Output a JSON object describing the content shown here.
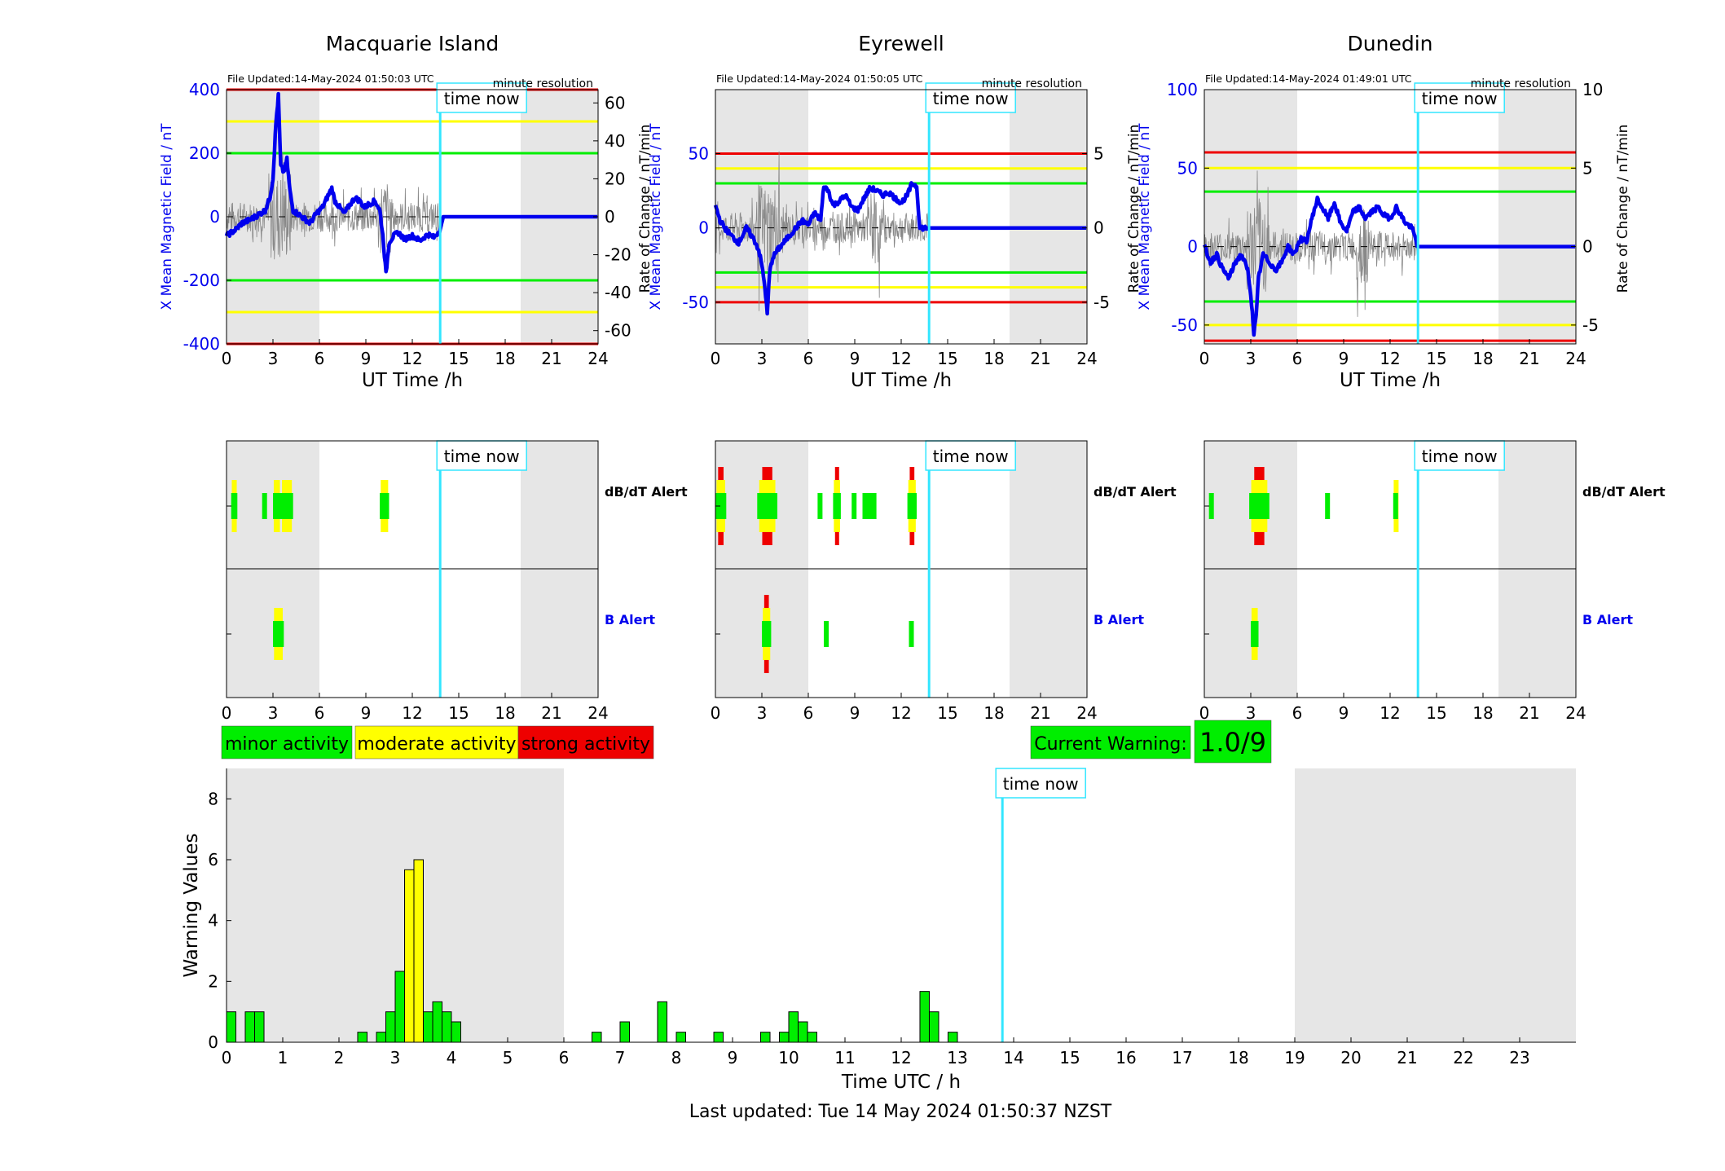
{
  "colors": {
    "blue": "#0000ee",
    "cyan": "#33e6ff",
    "green": "#00ee00",
    "yellow": "#ffff00",
    "red": "#ee0000",
    "night": "#e6e6e6",
    "grey_line": "#888888"
  },
  "legend": {
    "minor": "minor activity",
    "moderate": "moderate activity",
    "strong": "strong activity"
  },
  "current_warning": {
    "label": "Current Warning:",
    "value": "1.0/9"
  },
  "time_now_label": "time now",
  "alert_labels": {
    "dbdt": "dB/dT Alert",
    "b": "B Alert"
  },
  "chart_data": [
    {
      "type": "line",
      "title": "Macquarie Island",
      "file_updated": "File Updated:14-May-2024 01:50:03 UTC",
      "resolution": "minute resolution",
      "xlabel": "UT Time /h",
      "ylabel_left": "X Mean Magnetic Field / nT",
      "ylabel_right": "Rate of Change / nT/min",
      "xlim": [
        0,
        24
      ],
      "xticks": [
        0,
        3,
        6,
        9,
        12,
        15,
        18,
        21,
        24
      ],
      "ylim": [
        -400,
        400
      ],
      "yticks": [
        -400,
        -200,
        0,
        200,
        400
      ],
      "ylim_right": [
        -67,
        67
      ],
      "yticks_right": [
        -60,
        -40,
        -20,
        0,
        20,
        40,
        60
      ],
      "night": [
        [
          0,
          6
        ],
        [
          19,
          24
        ]
      ],
      "time_now": 13.8,
      "thresholds": [
        {
          "value": 200,
          "color": "green"
        },
        {
          "value": -200,
          "color": "green"
        },
        {
          "value": 300,
          "color": "yellow"
        },
        {
          "value": -300,
          "color": "yellow"
        },
        {
          "value": 400,
          "color": "red"
        },
        {
          "value": -400,
          "color": "red"
        }
      ],
      "series": [
        {
          "x": [
            0,
            0.3,
            0.6,
            1.0,
            1.5,
            2.0,
            2.5,
            2.8,
            3.0,
            3.2,
            3.35,
            3.5,
            3.7,
            3.9,
            4.1,
            4.3,
            4.6,
            5.0,
            5.4,
            5.8,
            6.2,
            6.5,
            6.8,
            7.0,
            7.3,
            7.6,
            8.0,
            8.3,
            8.6,
            8.9,
            9.2,
            9.6,
            9.9,
            10.1,
            10.3,
            10.5,
            10.8,
            11.1,
            11.5,
            12.0,
            12.5,
            13.0,
            13.4,
            13.8,
            14.0,
            24
          ],
          "values": [
            -60,
            -50,
            -40,
            -20,
            -10,
            5,
            20,
            60,
            120,
            300,
            380,
            160,
            140,
            180,
            80,
            20,
            10,
            -5,
            -20,
            10,
            30,
            60,
            90,
            50,
            30,
            10,
            40,
            60,
            50,
            30,
            40,
            50,
            20,
            -60,
            -180,
            -80,
            -60,
            -50,
            -70,
            -60,
            -75,
            -55,
            -65,
            -40,
            0,
            0
          ]
        }
      ],
      "dbdt_alerts": [
        {
          "x": [
            0.3,
            0.7
          ],
          "level": "yellow"
        },
        {
          "x": [
            2.3,
            2.6
          ],
          "level": "green"
        },
        {
          "x": [
            3.0,
            3.5
          ],
          "level": "yellow"
        },
        {
          "x": [
            3.5,
            4.3
          ],
          "level": "yellow"
        },
        {
          "x": [
            9.9,
            10.5
          ],
          "level": "yellow"
        }
      ],
      "b_alerts": [
        {
          "x": [
            3.0,
            3.7
          ],
          "level": "yellow"
        }
      ]
    },
    {
      "type": "line",
      "title": "Eyrewell",
      "file_updated": "File Updated:14-May-2024 01:50:05 UTC",
      "resolution": "minute resolution",
      "xlabel": "UT Time /h",
      "ylabel_left": "X Mean Magnetic Field / nT",
      "ylabel_right": "Rate of Change / nT/min",
      "xlim": [
        0,
        24
      ],
      "xticks": [
        0,
        3,
        6,
        9,
        12,
        15,
        18,
        21,
        24
      ],
      "ylim": [
        -78,
        93
      ],
      "yticks": [
        -50,
        0,
        50
      ],
      "ylim_right": [
        -7.8,
        9.3
      ],
      "yticks_right": [
        -5,
        0,
        5
      ],
      "night": [
        [
          0,
          6
        ],
        [
          19,
          24
        ]
      ],
      "time_now": 13.8,
      "thresholds": [
        {
          "value": 30,
          "color": "green"
        },
        {
          "value": -30,
          "color": "green"
        },
        {
          "value": 40,
          "color": "yellow"
        },
        {
          "value": -40,
          "color": "yellow"
        },
        {
          "value": 50,
          "color": "red"
        },
        {
          "value": -50,
          "color": "red"
        }
      ],
      "series": [
        {
          "x": [
            0,
            0.3,
            0.6,
            1.0,
            1.5,
            2.0,
            2.5,
            2.8,
            3.0,
            3.2,
            3.35,
            3.5,
            3.7,
            4.0,
            4.4,
            4.8,
            5.2,
            5.6,
            6.0,
            6.4,
            6.8,
            7.0,
            7.3,
            7.6,
            8.0,
            8.4,
            8.8,
            9.2,
            9.6,
            10.0,
            10.4,
            10.8,
            11.2,
            11.6,
            12.0,
            12.4,
            12.7,
            13.0,
            13.2,
            24
          ],
          "values": [
            15,
            5,
            0,
            -5,
            -10,
            0,
            -8,
            -15,
            -25,
            -40,
            -58,
            -30,
            -20,
            -15,
            -10,
            -5,
            0,
            5,
            2,
            10,
            5,
            28,
            25,
            15,
            18,
            22,
            14,
            12,
            20,
            27,
            25,
            22,
            24,
            20,
            17,
            22,
            30,
            28,
            0,
            0
          ]
        }
      ],
      "dbdt_alerts": [
        {
          "x": [
            0,
            0.7
          ],
          "level": "red"
        },
        {
          "x": [
            2.7,
            4.0
          ],
          "level": "red"
        },
        {
          "x": [
            6.6,
            6.9
          ],
          "level": "green"
        },
        {
          "x": [
            7.6,
            8.1
          ],
          "level": "red"
        },
        {
          "x": [
            8.8,
            9.1
          ],
          "level": "green"
        },
        {
          "x": [
            9.5,
            10.4
          ],
          "level": "green"
        },
        {
          "x": [
            12.4,
            13.0
          ],
          "level": "red"
        }
      ],
      "b_alerts": [
        {
          "x": [
            3.0,
            3.6
          ],
          "level": "red"
        },
        {
          "x": [
            7.0,
            7.3
          ],
          "level": "green"
        },
        {
          "x": [
            12.5,
            12.8
          ],
          "level": "green"
        }
      ]
    },
    {
      "type": "line",
      "title": "Dunedin",
      "file_updated": "File Updated:14-May-2024 01:49:01 UTC",
      "resolution": "minute resolution",
      "xlabel": "UT Time /h",
      "ylabel_left": "X Mean Magnetic Field / nT",
      "ylabel_right": "Rate of Change / nT/min",
      "xlim": [
        0,
        24
      ],
      "xticks": [
        0,
        3,
        6,
        9,
        12,
        15,
        18,
        21,
        24
      ],
      "ylim": [
        -62,
        100
      ],
      "yticks": [
        -50,
        0,
        50,
        100
      ],
      "ylim_right": [
        -6.2,
        10
      ],
      "yticks_right": [
        -5,
        0,
        5,
        10
      ],
      "night": [
        [
          0,
          6
        ],
        [
          19,
          24
        ]
      ],
      "time_now": 13.8,
      "thresholds": [
        {
          "value": 35,
          "color": "green"
        },
        {
          "value": -35,
          "color": "green"
        },
        {
          "value": 50,
          "color": "yellow"
        },
        {
          "value": -50,
          "color": "yellow"
        },
        {
          "value": 60,
          "color": "red"
        },
        {
          "value": -60,
          "color": "red"
        }
      ],
      "series": [
        {
          "x": [
            0,
            0.4,
            0.8,
            1.2,
            1.6,
            2.0,
            2.4,
            2.8,
            3.0,
            3.2,
            3.35,
            3.5,
            3.8,
            4.2,
            4.6,
            5.0,
            5.4,
            5.8,
            6.2,
            6.6,
            7.0,
            7.3,
            7.6,
            8.0,
            8.4,
            8.8,
            9.2,
            9.6,
            10.0,
            10.4,
            10.8,
            11.2,
            11.6,
            12.0,
            12.4,
            12.7,
            13.0,
            13.4,
            13.8,
            24
          ],
          "values": [
            0,
            -10,
            -5,
            -15,
            -20,
            -10,
            -5,
            -15,
            -30,
            -55,
            -45,
            -20,
            -5,
            -10,
            -15,
            -10,
            0,
            -5,
            5,
            3,
            20,
            30,
            25,
            18,
            28,
            15,
            10,
            22,
            25,
            18,
            22,
            25,
            20,
            18,
            25,
            20,
            15,
            12,
            0,
            0
          ]
        }
      ],
      "dbdt_alerts": [
        {
          "x": [
            0.3,
            0.6
          ],
          "level": "green"
        },
        {
          "x": [
            2.9,
            4.2
          ],
          "level": "red"
        },
        {
          "x": [
            7.8,
            8.1
          ],
          "level": "green"
        },
        {
          "x": [
            12.2,
            12.5
          ],
          "level": "yellow"
        }
      ],
      "b_alerts": [
        {
          "x": [
            3.0,
            3.5
          ],
          "level": "yellow"
        }
      ]
    },
    {
      "type": "bar",
      "xlabel": "Time UTC / h",
      "ylabel": "Warning Values",
      "xlim": [
        0,
        24
      ],
      "xticks": [
        0,
        1,
        2,
        3,
        4,
        5,
        6,
        7,
        8,
        9,
        10,
        11,
        12,
        13,
        14,
        15,
        16,
        17,
        18,
        19,
        20,
        21,
        22,
        23
      ],
      "ylim": [
        0,
        9
      ],
      "yticks": [
        0,
        2,
        4,
        6,
        8
      ],
      "night": [
        [
          0,
          6
        ],
        [
          19,
          24
        ]
      ],
      "time_now": 13.8,
      "bin_width": 0.1667,
      "x": [
        0,
        0.333,
        0.5,
        2.333,
        2.667,
        2.833,
        3.0,
        3.167,
        3.333,
        3.5,
        3.667,
        3.833,
        4.0,
        6.5,
        7.0,
        7.667,
        8.0,
        8.667,
        9.5,
        9.833,
        10.0,
        10.167,
        10.333,
        12.333,
        12.5,
        12.833
      ],
      "values": [
        1,
        1,
        1,
        0.33,
        0.33,
        1,
        2.33,
        5.67,
        6,
        1,
        1.33,
        1,
        0.67,
        0.33,
        0.67,
        1.33,
        0.33,
        0.33,
        0.33,
        0.33,
        1,
        0.67,
        0.33,
        1.67,
        1,
        0.33
      ]
    }
  ],
  "footer": "Last updated: Tue 14 May 2024 01:50:37 NZST"
}
